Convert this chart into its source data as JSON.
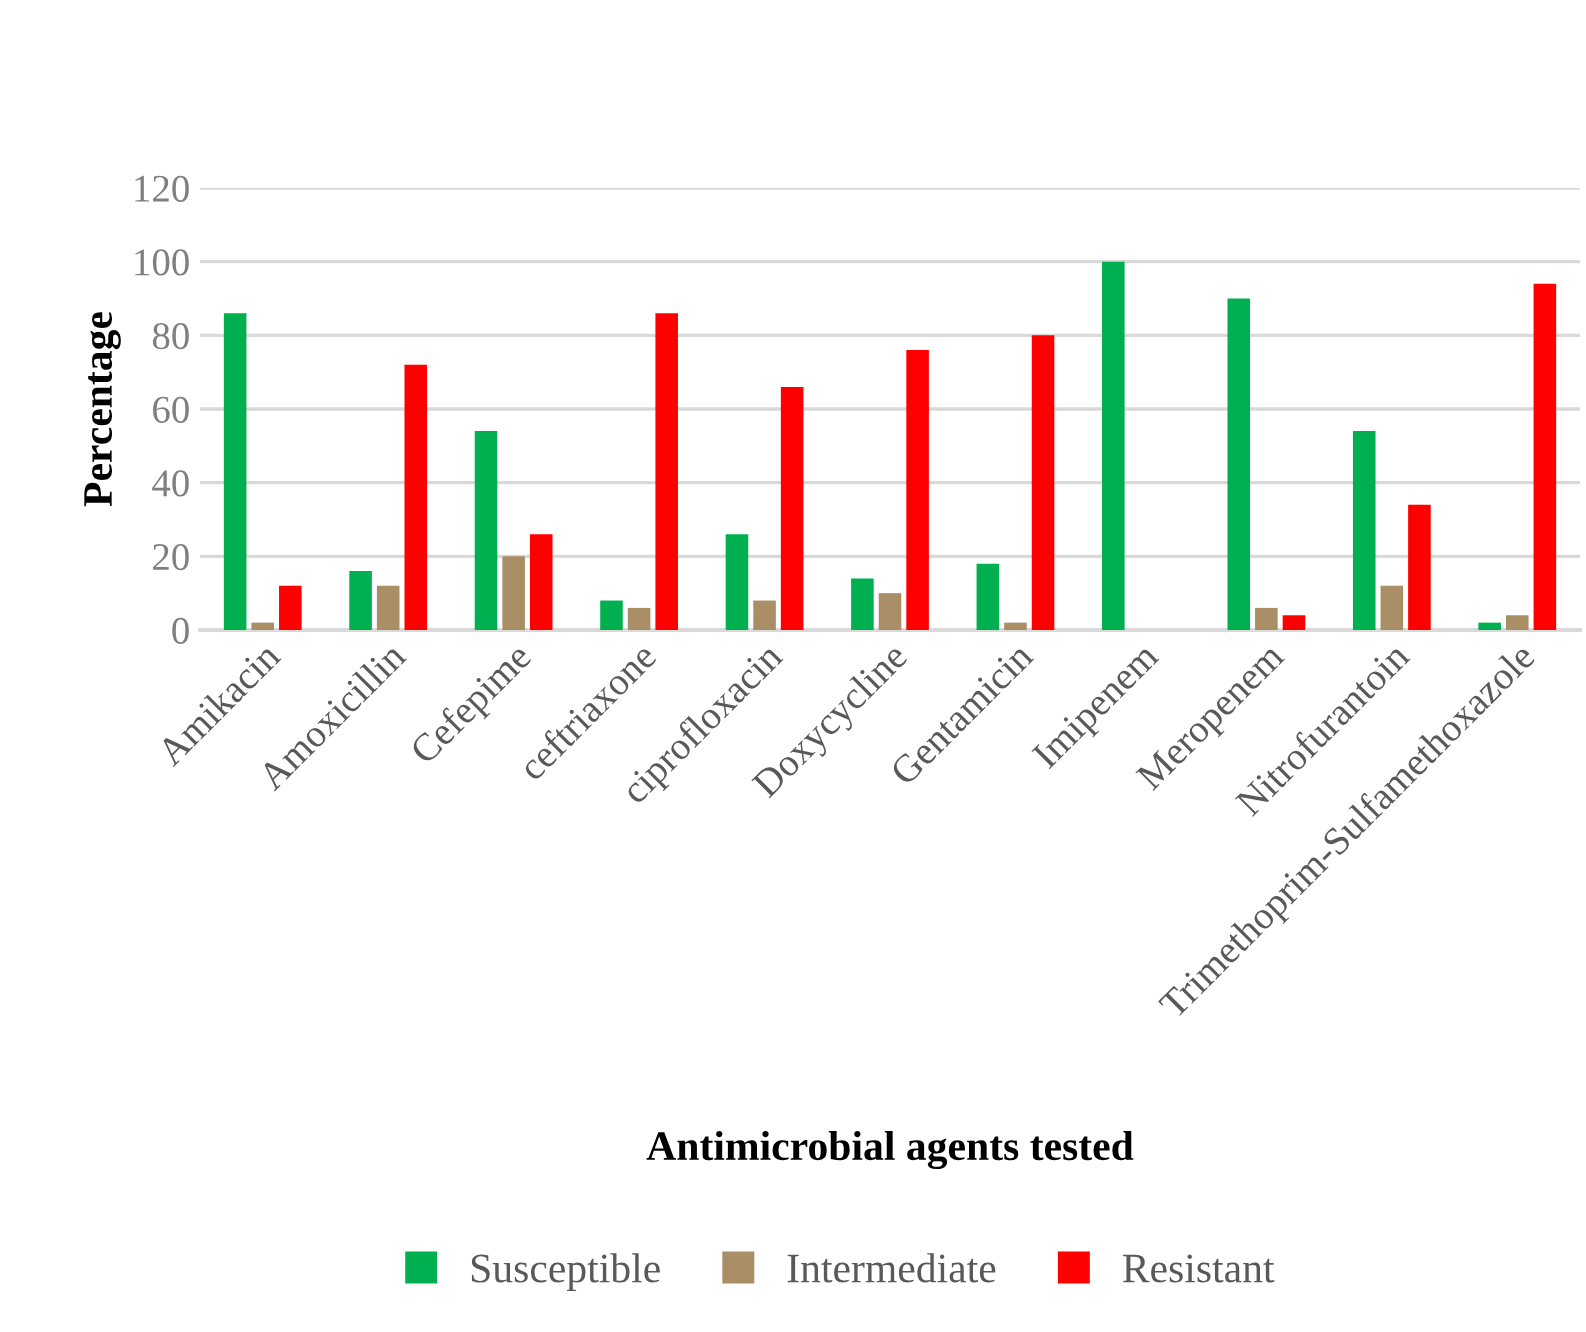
{
  "chart_data": {
    "type": "bar",
    "categories": [
      "Amikacin",
      "Amoxicillin",
      "Cefepime",
      "ceftriaxone",
      "ciprofloxacin",
      "Doxycycline",
      "Gentamicin",
      "Imipenem",
      "Meropenem",
      "Nitrofurantoin",
      "Trimethoprim-Sulfamethoxazole"
    ],
    "series": [
      {
        "name": "Susceptible",
        "color": "#00b050",
        "values": [
          86,
          16,
          54,
          8,
          26,
          14,
          18,
          100,
          90,
          54,
          2
        ]
      },
      {
        "name": "Intermediate",
        "color": "#a98e66",
        "values": [
          2,
          12,
          20,
          6,
          8,
          10,
          2,
          0,
          6,
          12,
          4
        ]
      },
      {
        "name": "Resistant",
        "color": "#ff0000",
        "values": [
          12,
          72,
          26,
          86,
          66,
          76,
          80,
          0,
          4,
          34,
          94
        ]
      }
    ],
    "xlabel": "Antimicrobial agents tested",
    "ylabel": "Percentage",
    "ylim": [
      0,
      120
    ],
    "yticks": [
      0,
      20,
      40,
      60,
      80,
      100,
      120
    ],
    "grid": "y",
    "legend": "bottom"
  }
}
